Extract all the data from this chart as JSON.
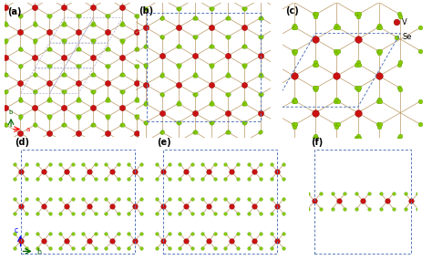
{
  "bg_color": "#ffffff",
  "V_color": "#cc1111",
  "Se_color": "#88cc00",
  "V_edge": "#880000",
  "Se_edge": "#448800",
  "bond_color": "#bb9966",
  "dash_color": "#5577bb",
  "panel_labels": [
    "(a)",
    "(b)",
    "(c)",
    "(d)",
    "(e)",
    "(f)"
  ],
  "legend_V": "V",
  "legend_Se": "Se",
  "label_fontsize": 7,
  "legend_fontsize": 6
}
